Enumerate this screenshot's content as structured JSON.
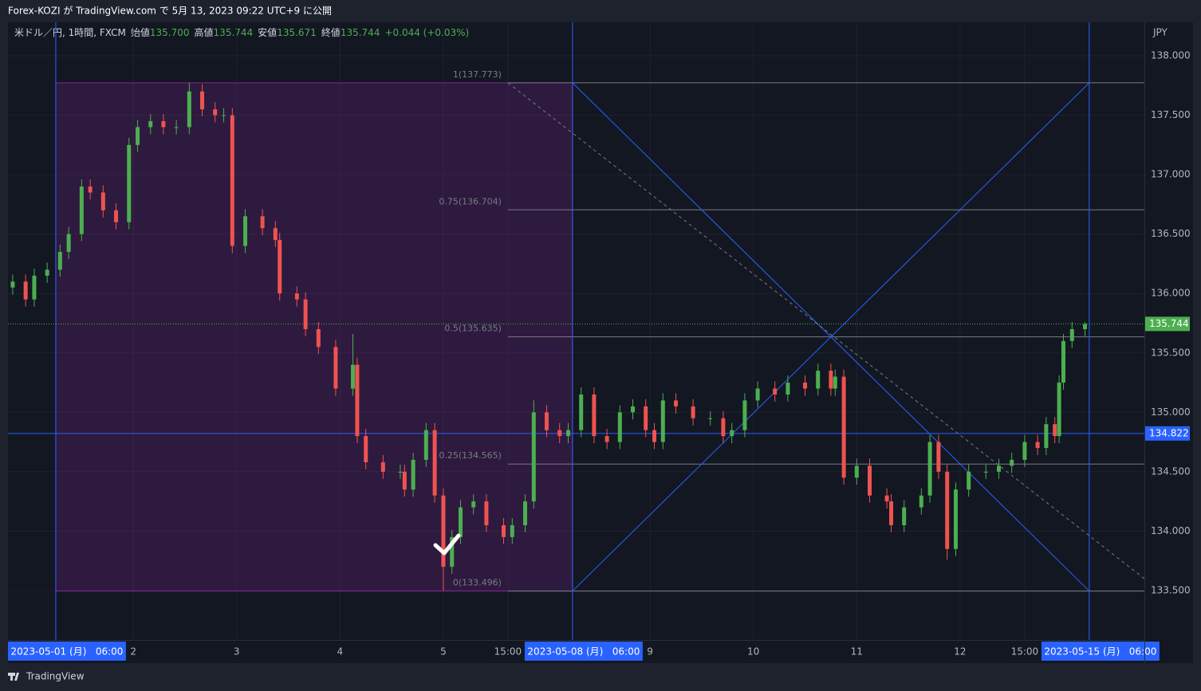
{
  "header": {
    "title": "Forex-KOZI が TradingView.com で 5月 13, 2023 09:22 UTC+9 に公開"
  },
  "legend": {
    "symbol": "米ドル／円, 1時間, FXCM",
    "fields": [
      {
        "label": "始値",
        "value": "135.700"
      },
      {
        "label": "高値",
        "value": "135.744"
      },
      {
        "label": "安値",
        "value": "135.671"
      },
      {
        "label": "終値",
        "value": "135.744"
      }
    ],
    "change": "+0.044 (+0.03%)"
  },
  "chart_data": {
    "type": "candlestick",
    "currency": "JPY",
    "up_color": "#4caf50",
    "down_color": "#ef5350",
    "grid": true,
    "xlim": [
      -11.1,
      252.8
    ],
    "ylim": [
      133.084,
      138.282
    ],
    "x": [
      -10,
      -7,
      -5,
      -2,
      1,
      3,
      6,
      8,
      11,
      14,
      17,
      19,
      22,
      25,
      28,
      31,
      34,
      37,
      39,
      41,
      44,
      48,
      51,
      52,
      56,
      58,
      61,
      65,
      69,
      70,
      72,
      76,
      80,
      81,
      83,
      86,
      88,
      90,
      92,
      94,
      97,
      100,
      104,
      106,
      109,
      111,
      114,
      117,
      119,
      122,
      125,
      128,
      131,
      134,
      137,
      139,
      141,
      144,
      148,
      152,
      155,
      157,
      160,
      163,
      167,
      170,
      174,
      177,
      180,
      181,
      183,
      186,
      189,
      193,
      194,
      197,
      201,
      203,
      205,
      207,
      209,
      212,
      216,
      219,
      222,
      225,
      228,
      230,
      232,
      233,
      234,
      236,
      239
    ],
    "open": [
      136.05,
      136.1,
      135.95,
      136.15,
      136.2,
      136.35,
      136.5,
      136.9,
      136.85,
      136.7,
      136.6,
      137.25,
      137.4,
      137.45,
      137.4,
      137.4,
      137.7,
      137.55,
      137.5,
      137.5,
      136.4,
      136.65,
      136.55,
      136.45,
      136.0,
      135.95,
      135.7,
      135.55,
      135.2,
      135.4,
      134.8,
      134.58,
      134.5,
      134.5,
      134.35,
      134.6,
      134.85,
      134.3,
      133.7,
      133.95,
      134.2,
      134.25,
      134.05,
      133.95,
      134.05,
      134.25,
      135.0,
      134.85,
      134.8,
      134.85,
      135.15,
      134.8,
      134.75,
      135.0,
      135.05,
      134.85,
      134.75,
      135.1,
      135.05,
      134.95,
      134.95,
      134.8,
      134.85,
      135.1,
      135.2,
      135.15,
      135.25,
      135.2,
      135.35,
      135.2,
      135.3,
      134.45,
      134.55,
      134.3,
      134.25,
      134.05,
      134.2,
      134.3,
      134.75,
      134.5,
      133.85,
      134.35,
      134.5,
      134.5,
      134.55,
      134.6,
      134.75,
      134.7,
      134.9,
      134.8,
      135.25,
      135.6,
      135.7
    ],
    "high": [
      136.16,
      136.16,
      136.21,
      136.26,
      136.41,
      136.56,
      136.96,
      136.96,
      136.91,
      136.76,
      137.31,
      137.46,
      137.51,
      137.51,
      137.46,
      137.77,
      137.76,
      137.61,
      137.56,
      137.56,
      136.71,
      136.71,
      136.61,
      136.51,
      136.06,
      136.01,
      135.76,
      135.61,
      135.66,
      135.46,
      134.86,
      134.64,
      134.56,
      134.56,
      134.66,
      134.91,
      134.91,
      134.36,
      134.01,
      134.26,
      134.31,
      134.31,
      134.11,
      134.11,
      134.31,
      135.1,
      135.06,
      134.91,
      134.91,
      135.21,
      135.21,
      134.86,
      135.06,
      135.11,
      135.11,
      134.91,
      135.16,
      135.16,
      135.11,
      135.01,
      135.01,
      134.91,
      135.16,
      135.26,
      135.26,
      135.31,
      135.31,
      135.41,
      135.41,
      135.36,
      135.36,
      134.61,
      134.61,
      134.36,
      134.31,
      134.26,
      134.36,
      134.81,
      134.81,
      134.56,
      134.41,
      134.56,
      134.56,
      134.61,
      134.66,
      134.81,
      134.81,
      134.96,
      134.96,
      135.31,
      135.66,
      135.76,
      135.76
    ],
    "low": [
      135.99,
      135.89,
      135.89,
      136.09,
      136.14,
      136.29,
      136.44,
      136.79,
      136.64,
      136.54,
      136.54,
      137.19,
      137.34,
      137.34,
      137.34,
      137.34,
      137.49,
      137.44,
      137.44,
      136.34,
      136.34,
      136.49,
      136.39,
      135.94,
      135.89,
      135.64,
      135.49,
      135.14,
      135.14,
      134.74,
      134.52,
      134.44,
      134.44,
      134.29,
      134.29,
      134.54,
      134.24,
      133.5,
      133.64,
      133.89,
      134.14,
      133.99,
      133.89,
      133.89,
      133.99,
      134.19,
      134.79,
      134.74,
      134.74,
      134.79,
      134.74,
      134.69,
      134.69,
      134.94,
      134.79,
      134.69,
      134.69,
      134.99,
      134.89,
      134.89,
      134.74,
      134.74,
      134.79,
      135.04,
      135.09,
      135.09,
      135.14,
      135.14,
      135.14,
      135.14,
      134.39,
      134.39,
      134.24,
      134.19,
      133.99,
      133.99,
      134.14,
      134.24,
      134.44,
      133.76,
      133.79,
      134.29,
      134.44,
      134.44,
      134.49,
      134.54,
      134.64,
      134.64,
      134.74,
      134.74,
      135.19,
      135.54,
      135.64
    ],
    "close": [
      136.1,
      135.95,
      136.15,
      136.2,
      136.35,
      136.5,
      136.9,
      136.85,
      136.7,
      136.6,
      137.25,
      137.4,
      137.45,
      137.4,
      137.4,
      137.7,
      137.55,
      137.5,
      137.5,
      136.4,
      136.65,
      136.55,
      136.45,
      136.0,
      135.95,
      135.7,
      135.55,
      135.2,
      135.4,
      134.8,
      134.58,
      134.5,
      134.5,
      134.35,
      134.6,
      134.85,
      134.3,
      133.7,
      133.95,
      134.2,
      134.25,
      134.05,
      133.95,
      134.05,
      134.25,
      135.0,
      134.85,
      134.8,
      134.85,
      135.15,
      134.8,
      134.75,
      135.0,
      135.05,
      134.85,
      134.75,
      135.1,
      135.05,
      134.95,
      134.95,
      134.8,
      134.85,
      135.1,
      135.2,
      135.15,
      135.25,
      135.2,
      135.35,
      135.2,
      135.3,
      134.45,
      134.55,
      134.3,
      134.25,
      134.05,
      134.2,
      134.3,
      134.75,
      134.5,
      133.85,
      134.35,
      134.5,
      134.5,
      134.55,
      134.6,
      134.75,
      134.7,
      134.9,
      134.8,
      135.25,
      135.6,
      135.7,
      135.744
    ],
    "yticks": [
      {
        "value": 133.5,
        "label": "133.500"
      },
      {
        "value": 134,
        "label": "134.000"
      },
      {
        "value": 134.5,
        "label": "134.500"
      },
      {
        "value": 135,
        "label": "135.000"
      },
      {
        "value": 135.5,
        "label": "135.500"
      },
      {
        "value": 136,
        "label": "136.000"
      },
      {
        "value": 136.5,
        "label": "136.500"
      },
      {
        "value": 137,
        "label": "137.000"
      },
      {
        "value": 137.5,
        "label": "137.500"
      },
      {
        "value": 138,
        "label": "138.000"
      }
    ],
    "xticks": [
      {
        "value": 0,
        "label": "2023-05-01 (月)   06:00"
      },
      {
        "value": 18,
        "label": "2"
      },
      {
        "value": 42,
        "label": "3"
      },
      {
        "value": 66,
        "label": "4"
      },
      {
        "value": 90,
        "label": "5"
      },
      {
        "value": 105,
        "label": "15:00"
      },
      {
        "value": 120,
        "label": "2023-05-08 (月)   06:00"
      },
      {
        "value": 138,
        "label": "9"
      },
      {
        "value": 162,
        "label": "10"
      },
      {
        "value": 186,
        "label": "11"
      },
      {
        "value": 210,
        "label": "12"
      },
      {
        "value": 225,
        "label": "15:00"
      },
      {
        "value": 240,
        "label": "2023-05-15 (月)   06:00"
      }
    ],
    "vlines": [
      0,
      120,
      240
    ],
    "line_color": "#2962ff",
    "fib": {
      "start": 105,
      "levels": [
        {
          "value": 137.773,
          "label": "1(137.773)"
        },
        {
          "value": 136.704,
          "label": "0.75(136.704)"
        },
        {
          "value": 135.635,
          "label": "0.5(135.635)"
        },
        {
          "value": 134.565,
          "label": "0.25(134.565)"
        },
        {
          "value": 133.496,
          "label": "0(133.496)"
        }
      ]
    },
    "range_box_color": "#9c27b0",
    "trend_line": {
      "x": [
        105,
        252.8
      ],
      "y": [
        137.773,
        133.6
      ]
    },
    "price_lines": [
      {
        "value": 134.822,
        "label": "134.822",
        "color": "#2962ff",
        "style": "solid"
      },
      {
        "value": 135.744,
        "label": "135.744",
        "color": "#4caf50",
        "style": "dotted"
      }
    ]
  },
  "footer": {
    "brand": "TradingView"
  }
}
